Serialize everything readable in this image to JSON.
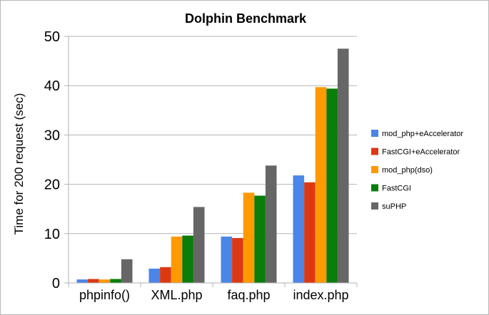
{
  "chart_data": {
    "type": "bar",
    "title": "Dolphin Benchmark",
    "ylabel": "Time for 200 request (sec)",
    "xlabel": "",
    "ylim": [
      0,
      50
    ],
    "yticks": [
      0,
      10,
      20,
      30,
      40,
      50
    ],
    "grid": "horizontal",
    "legend_position": "right",
    "categories": [
      "phpinfo()",
      "XML.php",
      "faq.php",
      "index.php"
    ],
    "series": [
      {
        "name": "mod_php+eAccelerator",
        "color": "#4a86e8",
        "values": [
          0.7,
          2.9,
          9.4,
          21.8
        ]
      },
      {
        "name": "FastCGI+eAccelerator",
        "color": "#dc3912",
        "values": [
          0.8,
          3.2,
          9.1,
          20.4
        ]
      },
      {
        "name": "mod_php(dso)",
        "color": "#ff9900",
        "values": [
          0.7,
          9.4,
          18.3,
          39.7
        ]
      },
      {
        "name": "FastCGI",
        "color": "#0a7d0a",
        "values": [
          0.8,
          9.6,
          17.7,
          39.4
        ]
      },
      {
        "name": "suPHP",
        "color": "#666666",
        "values": [
          4.8,
          15.4,
          23.8,
          47.5
        ]
      }
    ]
  }
}
